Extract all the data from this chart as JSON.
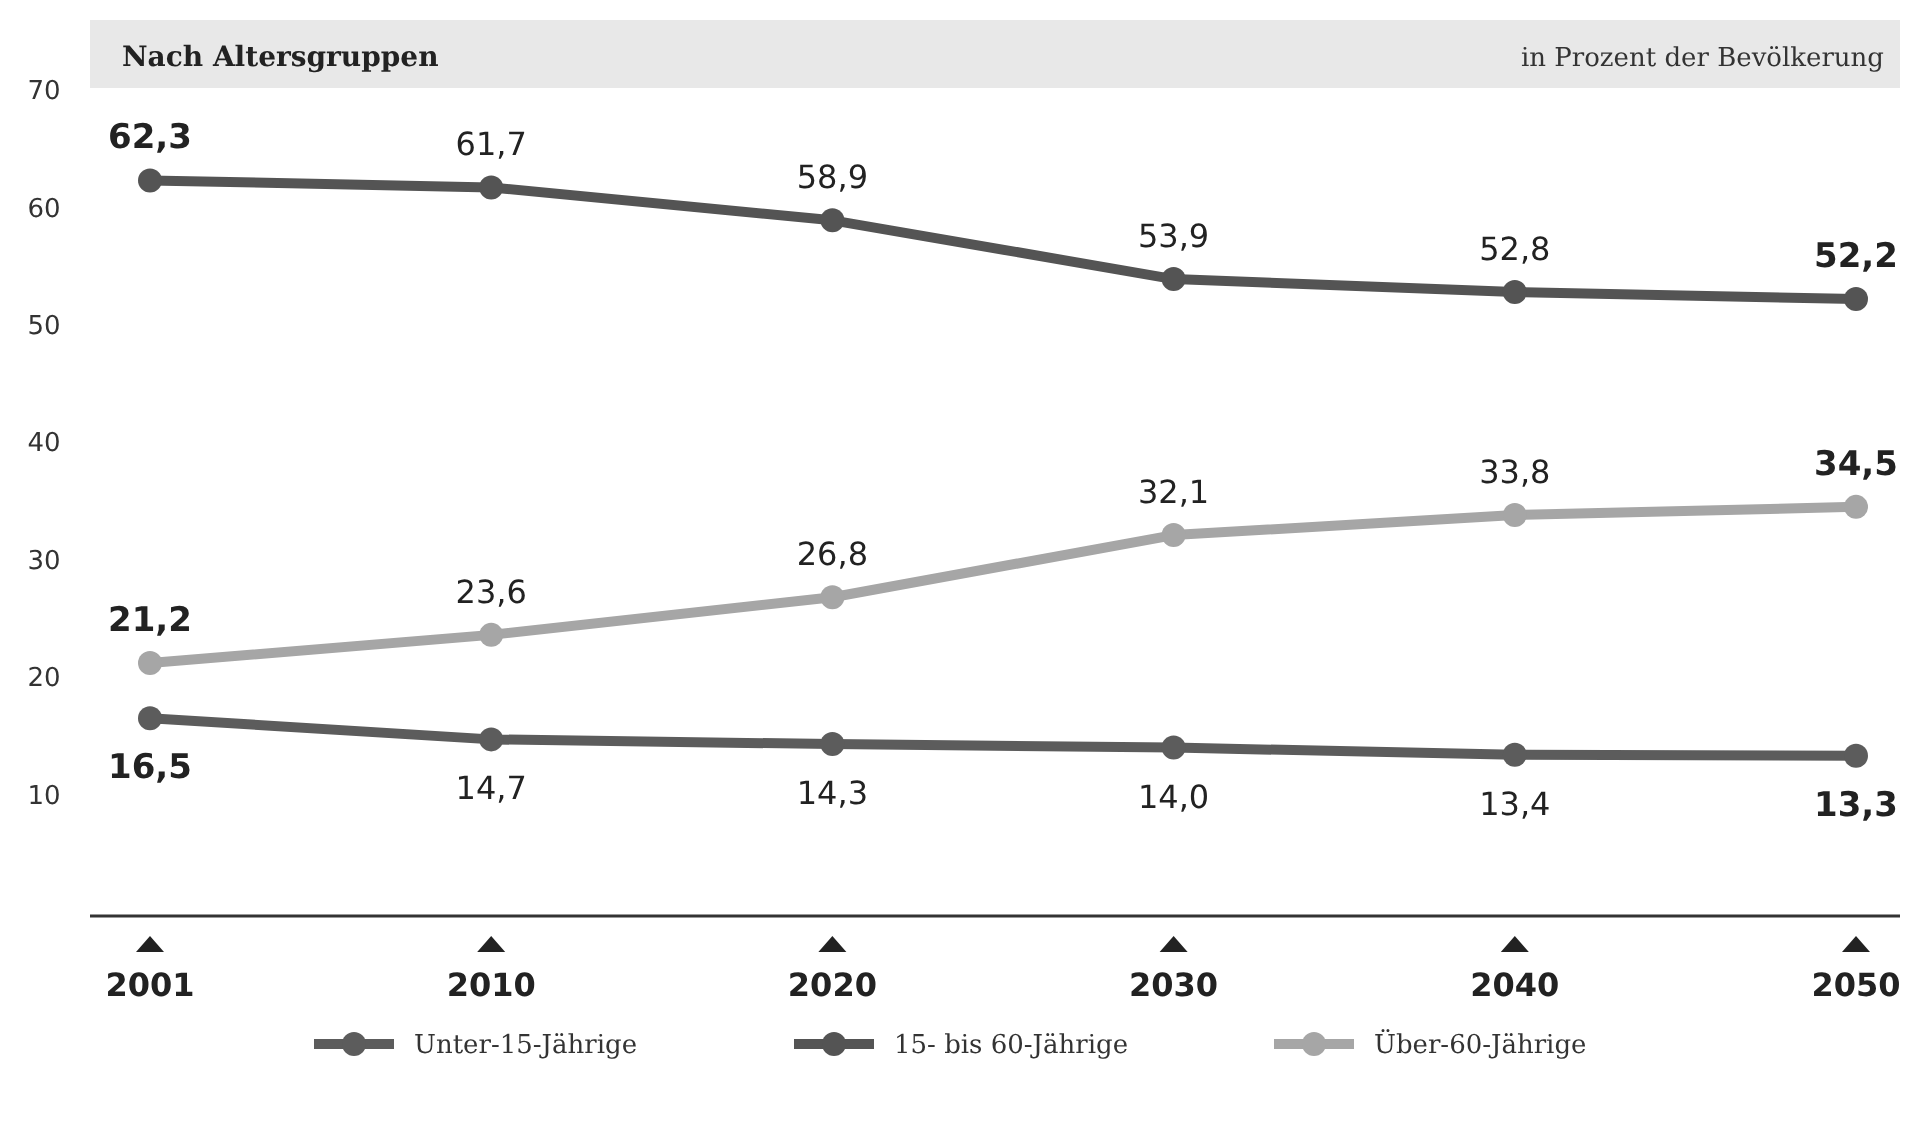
{
  "chart_data": {
    "type": "line",
    "title": "Nach Altersgruppen",
    "subtitle": "in Prozent der Bevölkerung",
    "categories": [
      "2001",
      "2010",
      "2020",
      "2030",
      "2040",
      "2050"
    ],
    "series": [
      {
        "name": "Unter-15-Jährige",
        "color": "#5c5c5c",
        "values": [
          16.5,
          14.7,
          14.3,
          14.0,
          13.4,
          13.3
        ],
        "value_labels": [
          "16,5",
          "14,7",
          "14,3",
          "14,0",
          "13,4",
          "13,3"
        ]
      },
      {
        "name": "15- bis 60-Jährige",
        "color": "#545454",
        "values": [
          62.3,
          61.7,
          58.9,
          53.9,
          52.8,
          52.2
        ],
        "value_labels": [
          "62,3",
          "61,7",
          "58,9",
          "53,9",
          "52,8",
          "52,2"
        ]
      },
      {
        "name": "Über-60-Jährige",
        "color": "#a6a6a6",
        "values": [
          21.2,
          23.6,
          26.8,
          32.1,
          33.8,
          34.5
        ],
        "value_labels": [
          "21,2",
          "23,6",
          "26,8",
          "32,1",
          "33,8",
          "34,5"
        ]
      }
    ],
    "ylim": [
      0,
      70
    ],
    "yticks": [
      10,
      20,
      30,
      40,
      50,
      60,
      70
    ],
    "grid": false,
    "legend": "bottom",
    "marker": "circle",
    "line_style": "solid"
  }
}
